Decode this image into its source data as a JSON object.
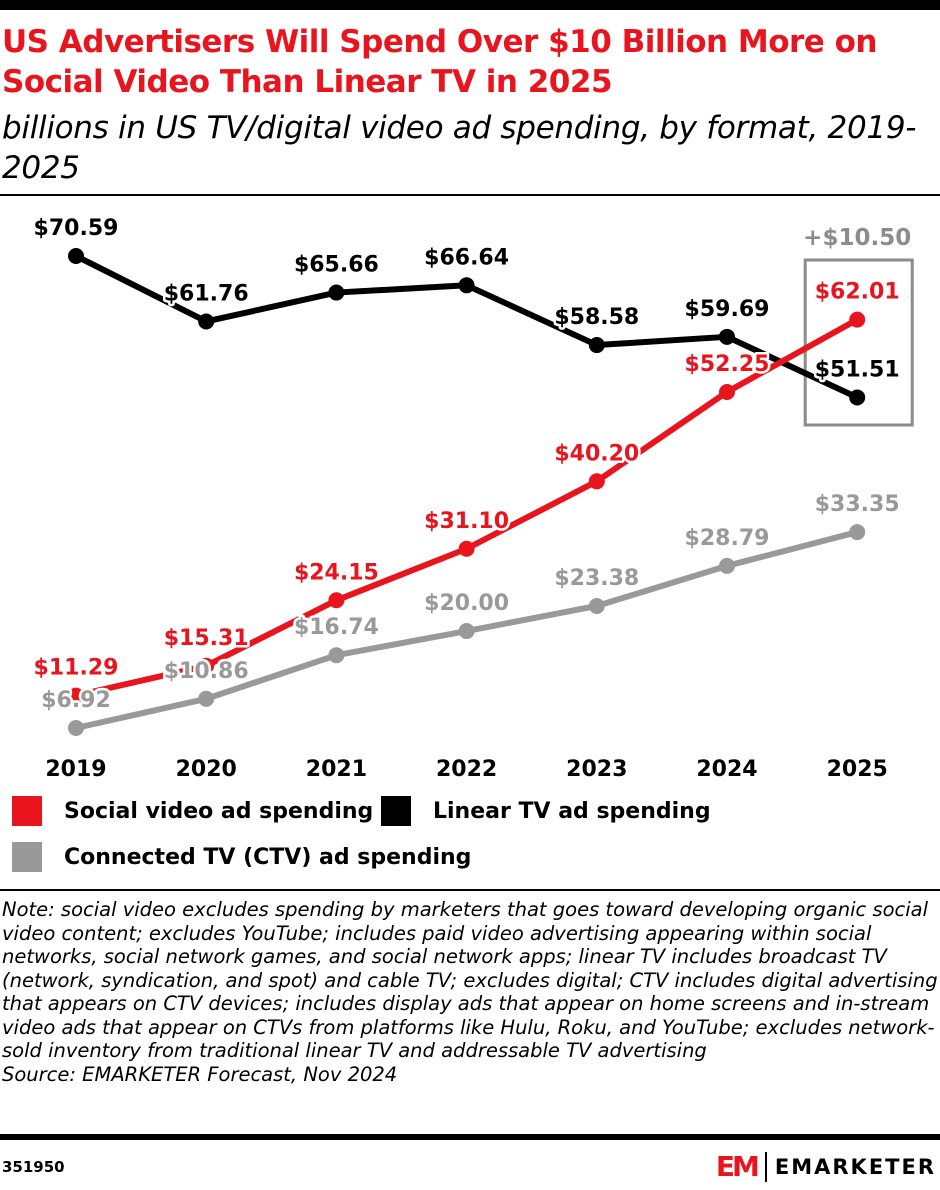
{
  "title": "US Advertisers Will Spend Over $10 Billion More on Social Video Than Linear TV in 2025",
  "subtitle": "billions in US TV/digital video ad spending, by format, 2019-2025",
  "chart_data": {
    "type": "line",
    "categories": [
      "2019",
      "2020",
      "2021",
      "2022",
      "2023",
      "2024",
      "2025"
    ],
    "series": [
      {
        "name": "Linear TV ad spending",
        "color": "#000000",
        "values": [
          70.59,
          61.76,
          65.66,
          66.64,
          58.58,
          59.69,
          51.51
        ],
        "labels": [
          "$70.59",
          "$61.76",
          "$65.66",
          "$66.64",
          "$58.58",
          "$59.69",
          "$51.51"
        ]
      },
      {
        "name": "Connected TV (CTV) ad spending",
        "color": "#999999",
        "values": [
          6.92,
          10.86,
          16.74,
          20.0,
          23.38,
          28.79,
          33.35
        ],
        "labels": [
          "$6.92",
          "$10.86",
          "$16.74",
          "$20.00",
          "$23.38",
          "$28.79",
          "$33.35"
        ]
      },
      {
        "name": "Social video ad spending",
        "color": "#e8141e",
        "values": [
          11.29,
          15.31,
          24.15,
          31.1,
          40.2,
          52.25,
          62.01
        ],
        "labels": [
          "$11.29",
          "$15.31",
          "$24.15",
          "$31.10",
          "$40.20",
          "$52.25",
          "$62.01"
        ]
      }
    ],
    "annotation": {
      "text": "+$10.50",
      "year": "2025",
      "color": "#8c8c8c"
    },
    "grid": false,
    "legend_placement": "bottom",
    "legend": [
      {
        "name": "Social video ad spending",
        "color": "#e8141e"
      },
      {
        "name": "Linear TV ad spending",
        "color": "#000000"
      },
      {
        "name": "Connected TV (CTV) ad spending",
        "color": "#999999"
      }
    ]
  },
  "note": "Note: social video excludes spending by marketers that goes toward developing organic social video content; excludes YouTube; includes paid video advertising appearing within social networks, social network games, and social network apps; linear TV includes broadcast TV (network, syndication, and spot) and cable TV; excludes digital; CTV includes digital advertising that appears on CTV devices; includes display ads that appear on home screens and in-stream video ads that appear on CTVs from platforms like Hulu, Roku, and YouTube; excludes network-sold inventory from traditional linear TV and addressable TV advertising",
  "source": "Source: EMARKETER Forecast, Nov 2024",
  "footer": {
    "id": "351950",
    "logo_mark": "EM",
    "brand": "EMARKETER"
  }
}
